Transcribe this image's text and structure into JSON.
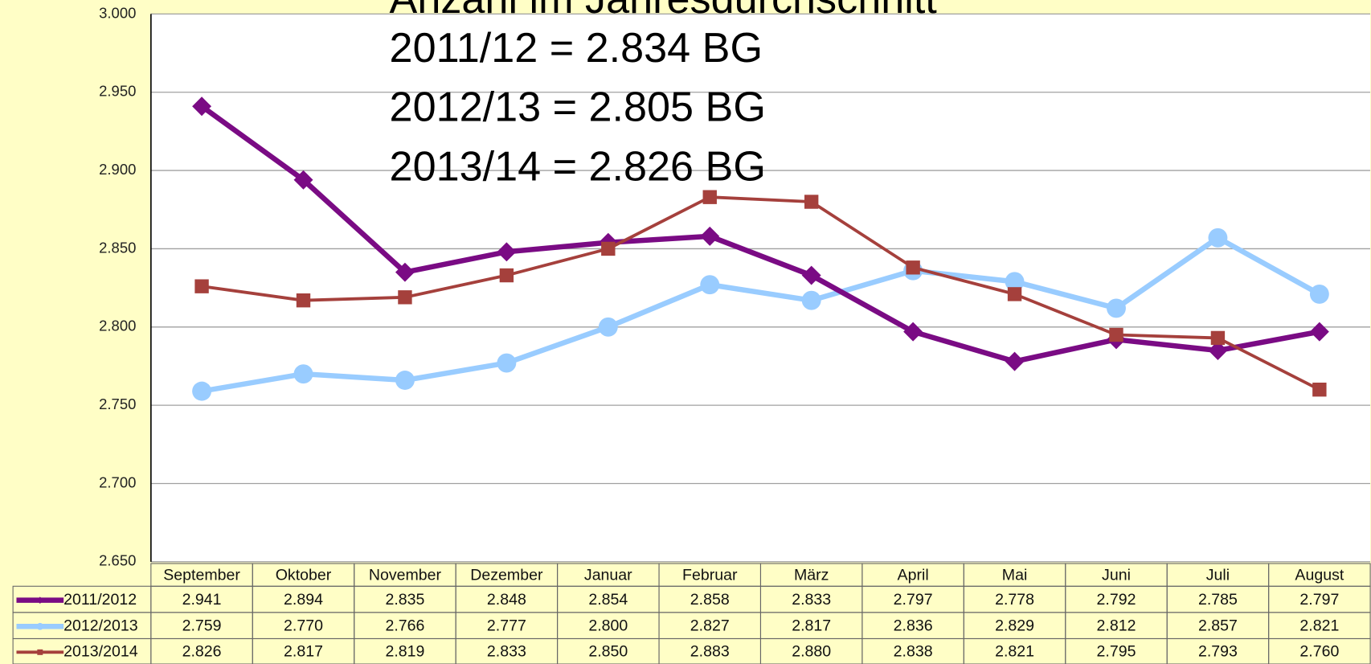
{
  "chart_data": {
    "type": "line",
    "title": "Anzahl im Jahresdurchschnitt",
    "annotations": [
      "2011/12 = 2.834 BG",
      "2012/13 = 2.805 BG",
      "2013/14 = 2.826 BG"
    ],
    "categories": [
      "September",
      "Oktober",
      "November",
      "Dezember",
      "Januar",
      "Februar",
      "März",
      "April",
      "Mai",
      "Juni",
      "Juli",
      "August"
    ],
    "series": [
      {
        "name": "2011/2012",
        "color": "#7a0b84",
        "marker": "diamond",
        "values": [
          2.941,
          2.894,
          2.835,
          2.848,
          2.854,
          2.858,
          2.833,
          2.797,
          2.778,
          2.792,
          2.785,
          2.797
        ],
        "value_labels": [
          "2.941",
          "2.894",
          "2.835",
          "2.848",
          "2.854",
          "2.858",
          "2.833",
          "2.797",
          "2.778",
          "2.792",
          "2.785",
          "2.797"
        ]
      },
      {
        "name": "2012/2013",
        "color": "#99ccff",
        "marker": "circle",
        "values": [
          2.759,
          2.77,
          2.766,
          2.777,
          2.8,
          2.827,
          2.817,
          2.836,
          2.829,
          2.812,
          2.857,
          2.821
        ],
        "value_labels": [
          "2.759",
          "2.770",
          "2.766",
          "2.777",
          "2.800",
          "2.827",
          "2.817",
          "2.836",
          "2.829",
          "2.812",
          "2.857",
          "2.821"
        ]
      },
      {
        "name": "2013/2014",
        "color": "#a5403c",
        "marker": "square",
        "values": [
          2.826,
          2.817,
          2.819,
          2.833,
          2.85,
          2.883,
          2.88,
          2.838,
          2.821,
          2.795,
          2.793,
          2.76
        ],
        "value_labels": [
          "2.826",
          "2.817",
          "2.819",
          "2.833",
          "2.850",
          "2.883",
          "2.880",
          "2.838",
          "2.821",
          "2.795",
          "2.793",
          "2.760"
        ]
      }
    ],
    "ylim": [
      2.65,
      3.0
    ],
    "yticks": [
      {
        "value": 2.65,
        "label": "2.650"
      },
      {
        "value": 2.7,
        "label": "2.700"
      },
      {
        "value": 2.75,
        "label": "2.750"
      },
      {
        "value": 2.8,
        "label": "2.800"
      },
      {
        "value": 2.85,
        "label": "2.850"
      },
      {
        "value": 2.9,
        "label": "2.900"
      },
      {
        "value": 2.95,
        "label": "2.950"
      },
      {
        "value": 3.0,
        "label": "3.000"
      }
    ],
    "grid": true
  }
}
